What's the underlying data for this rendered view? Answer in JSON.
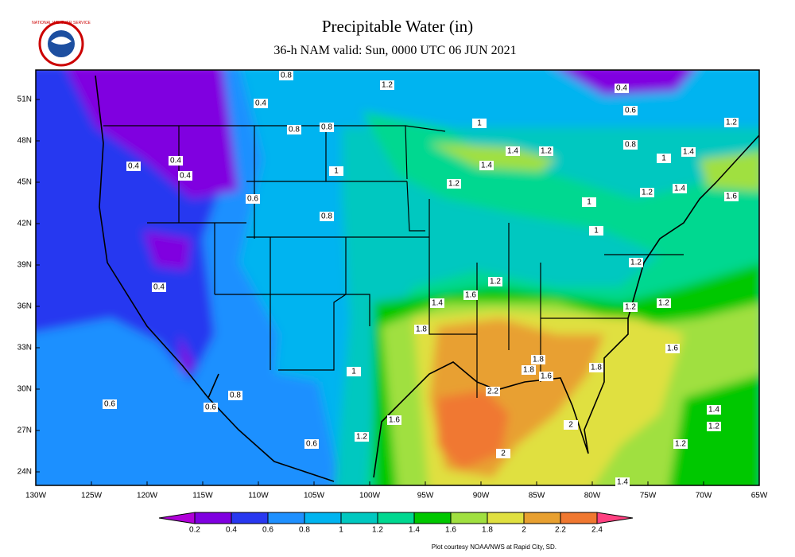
{
  "header": {
    "title": "Precipitable Water (in)",
    "subtitle": "36-h NAM valid: Sun, 0000 UTC 06 JUN 2021",
    "logo_text": "NATIONAL WEATHER SERVICE"
  },
  "map": {
    "lat_labels": [
      "51N",
      "48N",
      "45N",
      "42N",
      "39N",
      "36N",
      "33N",
      "30N",
      "27N",
      "24N"
    ],
    "lon_labels": [
      "130W",
      "125W",
      "120W",
      "115W",
      "110W",
      "105W",
      "100W",
      "95W",
      "90W",
      "85W",
      "80W",
      "75W",
      "70W",
      "65W"
    ],
    "contour_labels": [
      "0.8",
      "1.2",
      "0.4",
      "0.4",
      "0.6",
      "1",
      "1.2",
      "0.8",
      "0.8",
      "0.8",
      "1.4",
      "1.2",
      "1",
      "1.4",
      "0.4",
      "0.4",
      "0.4",
      "1.4",
      "1",
      "1.2",
      "1.2",
      "1.4",
      "1.6",
      "0.6",
      "1",
      "0.8",
      "1",
      "1.2",
      "1.2",
      "0.4",
      "1.6",
      "1.4",
      "1.2",
      "1.2",
      "1.8",
      "1.6",
      "1.8",
      "1",
      "1.8",
      "1.6",
      "1.8",
      "2.2",
      "0.8",
      "0.6",
      "0.6",
      "1.4",
      "1.6",
      "2",
      "1.2",
      "1.2",
      "0.6",
      "1.2",
      "2",
      "1.4"
    ]
  },
  "colorbar": {
    "levels": [
      0.2,
      0.4,
      0.6,
      0.8,
      1,
      1.2,
      1.4,
      1.6,
      1.8,
      2,
      2.2,
      2.4
    ],
    "colors": [
      "#b000d8",
      "#8000e0",
      "#2838f0",
      "#1e90ff",
      "#00b4f0",
      "#00c8c0",
      "#00d890",
      "#00c800",
      "#a0e040",
      "#e0e040",
      "#e8a030",
      "#f07830",
      "#ff4080"
    ]
  },
  "credit": "Plot courtesy NOAA/NWS at Rapid City, SD."
}
